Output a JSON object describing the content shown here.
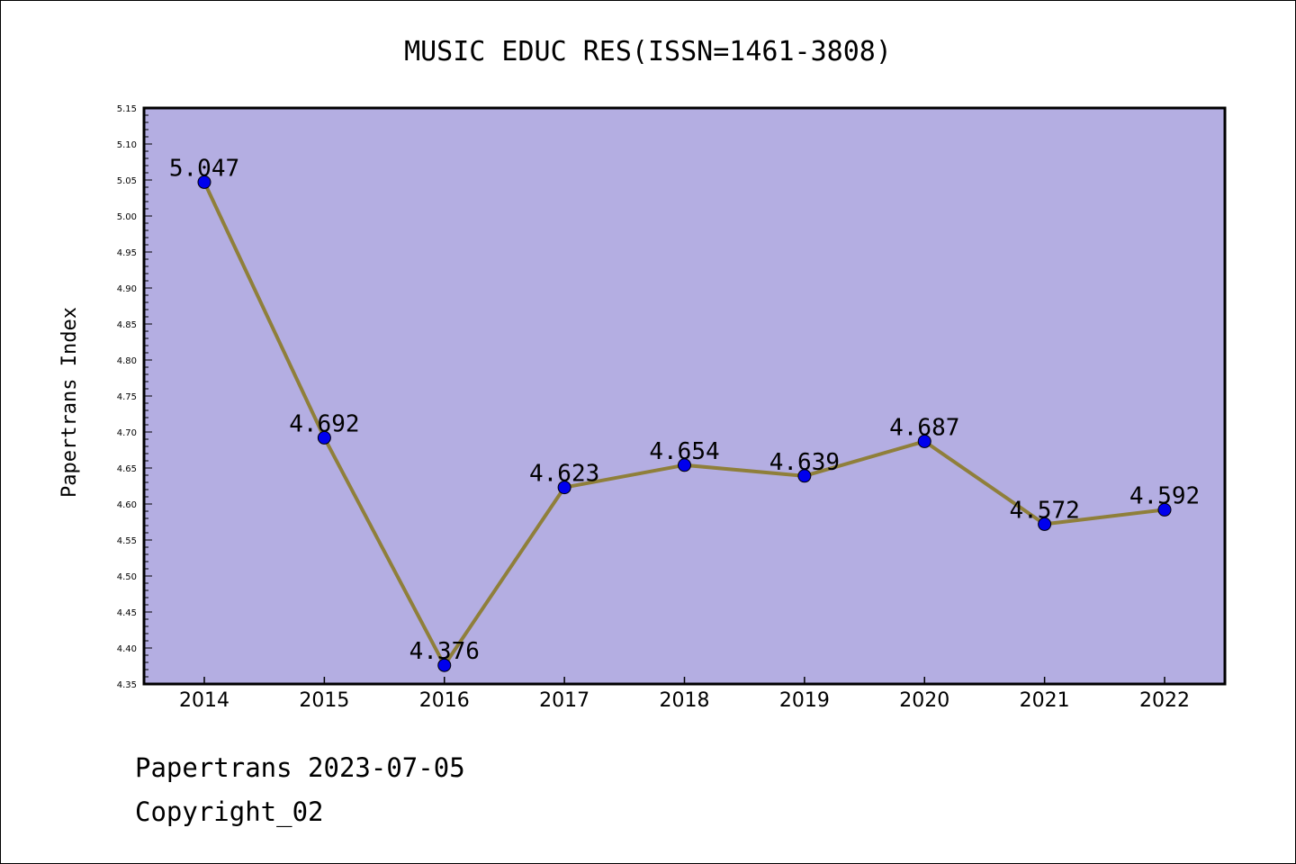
{
  "chart_data": {
    "type": "line",
    "title": "MUSIC EDUC RES(ISSN=1461-3808)",
    "xlabel": "",
    "ylabel": "Papertrans Index",
    "categories": [
      "2014",
      "2015",
      "2016",
      "2017",
      "2018",
      "2019",
      "2020",
      "2021",
      "2022"
    ],
    "values": [
      5.047,
      4.692,
      4.376,
      4.623,
      4.654,
      4.639,
      4.687,
      4.572,
      4.592
    ],
    "value_labels": [
      "5.047",
      "4.692",
      "4.376",
      "4.623",
      "4.654",
      "4.639",
      "4.687",
      "4.572",
      "4.592"
    ],
    "ylim": [
      4.35,
      5.15
    ],
    "yticks": [
      "4.35",
      "4.40",
      "4.45",
      "4.50",
      "4.55",
      "4.60",
      "4.65",
      "4.70",
      "4.75",
      "4.80",
      "4.85",
      "4.90",
      "4.95",
      "5.00",
      "5.05",
      "5.10",
      "5.15"
    ],
    "grid": false,
    "legend": "none",
    "colors": {
      "plot_background": "#b4aee2",
      "line": "#8f7f3a",
      "marker": "#0000ee"
    }
  },
  "footer": {
    "date_line": "Papertrans 2023-07-05",
    "copyright": "Copyright_02"
  }
}
